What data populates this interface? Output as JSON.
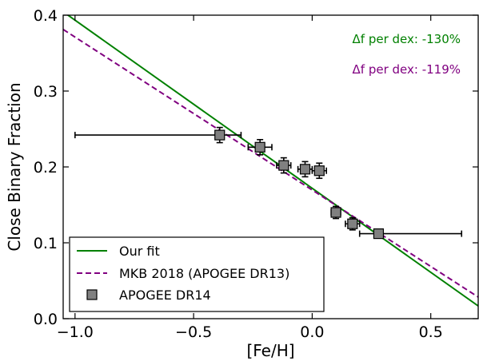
{
  "chart_data": {
    "type": "scatter",
    "xlabel": "[Fe/H]",
    "ylabel": "Close Binary Fraction",
    "xlim": [
      -1.05,
      0.7
    ],
    "ylim": [
      0.0,
      0.4
    ],
    "xticks": [
      -1.0,
      -0.5,
      0.0,
      0.5
    ],
    "xtick_labels": [
      "−1.0",
      "−0.5",
      "0.0",
      "0.5"
    ],
    "yticks": [
      0.0,
      0.1,
      0.2,
      0.3,
      0.4
    ],
    "ytick_labels": [
      "0.0",
      "0.1",
      "0.2",
      "0.3",
      "0.4"
    ],
    "grid": false,
    "legend_position": "bottom-left",
    "lines": [
      {
        "name": "Our fit",
        "style": "solid",
        "color": "#008000",
        "x": [
          -1.05,
          0.7
        ],
        "y": [
          0.4045,
          0.0168
        ]
      },
      {
        "name": "MKB 2018 (APOGEE DR13)",
        "style": "dashed",
        "color": "#800080",
        "x": [
          -1.05,
          0.7
        ],
        "y": [
          0.3812,
          0.0285
        ]
      }
    ],
    "points": {
      "name": "APOGEE DR14",
      "marker": "square",
      "color": "#808080",
      "data": [
        {
          "x": -0.39,
          "y": 0.242,
          "xerr_low": 0.61,
          "xerr_high": 0.09,
          "yerr": 0.01
        },
        {
          "x": -0.22,
          "y": 0.226,
          "xerr_low": 0.05,
          "xerr_high": 0.05,
          "yerr": 0.01
        },
        {
          "x": -0.12,
          "y": 0.202,
          "xerr_low": 0.03,
          "xerr_high": 0.03,
          "yerr": 0.01
        },
        {
          "x": -0.03,
          "y": 0.197,
          "xerr_low": 0.03,
          "xerr_high": 0.03,
          "yerr": 0.01
        },
        {
          "x": 0.03,
          "y": 0.195,
          "xerr_low": 0.03,
          "xerr_high": 0.03,
          "yerr": 0.01
        },
        {
          "x": 0.1,
          "y": 0.14,
          "xerr_low": 0.02,
          "xerr_high": 0.02,
          "yerr": 0.008
        },
        {
          "x": 0.17,
          "y": 0.125,
          "xerr_low": 0.03,
          "xerr_high": 0.03,
          "yerr": 0.008
        },
        {
          "x": 0.28,
          "y": 0.112,
          "xerr_low": 0.08,
          "xerr_high": 0.35,
          "yerr": 0.005
        }
      ]
    },
    "annotations": [
      {
        "text": "Δf per dex: -130%",
        "color": "#008000"
      },
      {
        "text": "Δf per dex: -119%",
        "color": "#800080"
      }
    ],
    "legend": [
      "Our fit",
      "MKB 2018 (APOGEE DR13)",
      "APOGEE DR14"
    ]
  }
}
